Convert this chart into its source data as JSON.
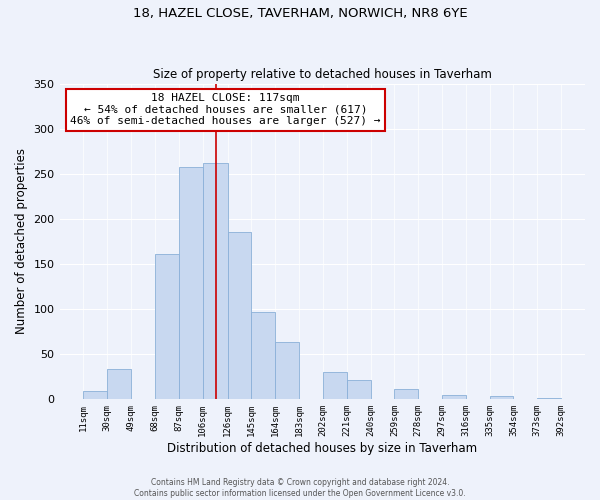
{
  "title1": "18, HAZEL CLOSE, TAVERHAM, NORWICH, NR8 6YE",
  "title2": "Size of property relative to detached houses in Taverham",
  "xlabel": "Distribution of detached houses by size in Taverham",
  "ylabel": "Number of detached properties",
  "bar_color": "#c8d8f0",
  "bar_edge_color": "#8ab0d8",
  "vline_x": 117,
  "vline_color": "#cc0000",
  "bin_edges": [
    11,
    30,
    49,
    68,
    87,
    106,
    126,
    145,
    164,
    183,
    202,
    221,
    240,
    259,
    278,
    297,
    316,
    335,
    354,
    373,
    392
  ],
  "bin_labels": [
    "11sqm",
    "30sqm",
    "49sqm",
    "68sqm",
    "87sqm",
    "106sqm",
    "126sqm",
    "145sqm",
    "164sqm",
    "183sqm",
    "202sqm",
    "221sqm",
    "240sqm",
    "259sqm",
    "278sqm",
    "297sqm",
    "316sqm",
    "335sqm",
    "354sqm",
    "373sqm",
    "392sqm"
  ],
  "counts": [
    9,
    34,
    0,
    161,
    258,
    262,
    185,
    97,
    64,
    0,
    30,
    21,
    0,
    11,
    0,
    5,
    0,
    4,
    0,
    1
  ],
  "ylim": [
    0,
    350
  ],
  "yticks": [
    0,
    50,
    100,
    150,
    200,
    250,
    300,
    350
  ],
  "annotation_title": "18 HAZEL CLOSE: 117sqm",
  "annotation_line1": "← 54% of detached houses are smaller (617)",
  "annotation_line2": "46% of semi-detached houses are larger (527) →",
  "annotation_box_color": "#ffffff",
  "annotation_box_edge": "#cc0000",
  "footer1": "Contains HM Land Registry data © Crown copyright and database right 2024.",
  "footer2": "Contains public sector information licensed under the Open Government Licence v3.0.",
  "background_color": "#eef2fb"
}
